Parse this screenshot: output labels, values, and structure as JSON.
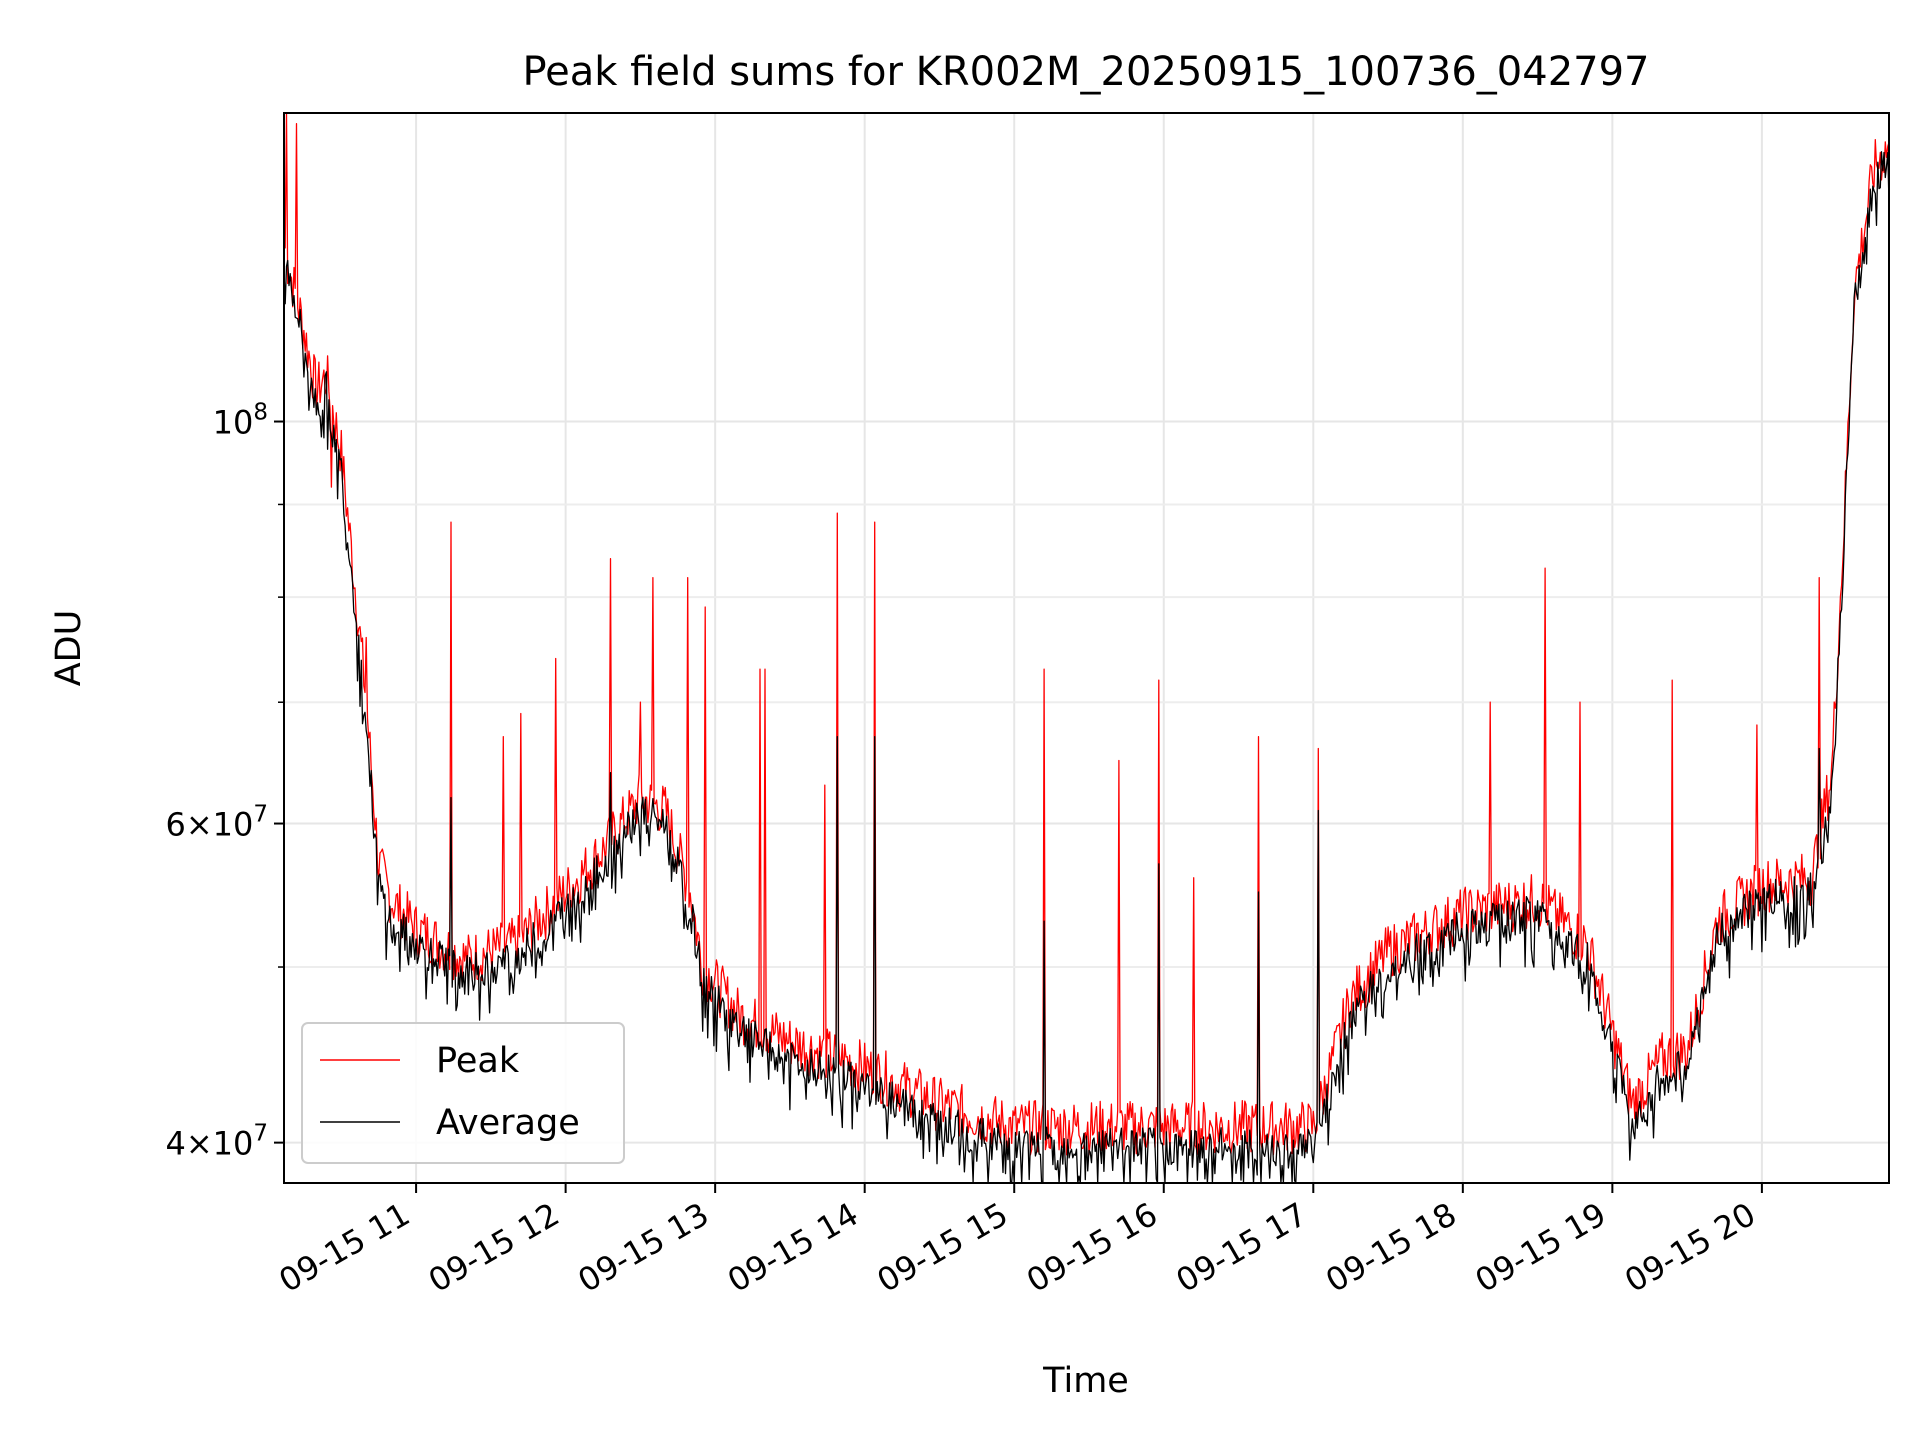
{
  "chart_data": {
    "type": "line",
    "title": "Peak field sums for KR002M_20250915_100736_042797",
    "xlabel": "Time",
    "ylabel": "ADU",
    "y_scale": "log",
    "x_range": [
      "2025-09-15 10:07",
      "2025-09-15 20:51"
    ],
    "ylim": [
      38000000,
      148000000
    ],
    "x_tick_labels": [
      "09-15 11",
      "09-15 12",
      "09-15 13",
      "09-15 14",
      "09-15 15",
      "09-15 16",
      "09-15 17",
      "09-15 18",
      "09-15 19",
      "09-15 20"
    ],
    "x_tick_times": [
      "2025-09-15 11:00",
      "2025-09-15 12:00",
      "2025-09-15 13:00",
      "2025-09-15 14:00",
      "2025-09-15 15:00",
      "2025-09-15 16:00",
      "2025-09-15 17:00",
      "2025-09-15 18:00",
      "2025-09-15 19:00",
      "2025-09-15 20:00"
    ],
    "y_major_ticks": [
      {
        "value": 40000000,
        "mantissa": "4",
        "exponent": "7"
      },
      {
        "value": 60000000,
        "mantissa": "6",
        "exponent": "7"
      },
      {
        "value": 100000000,
        "mantissa": "",
        "exponent": "8"
      }
    ],
    "y_minor_ticks": [
      50000000,
      70000000,
      80000000,
      90000000
    ],
    "grid": true,
    "legend_position": "lower-left",
    "series": [
      {
        "name": "Peak",
        "color": "#ff0000",
        "baseline": [
          [
            "2025-09-15 10:07",
            125000000
          ],
          [
            "2025-09-15 10:10",
            120000000
          ],
          [
            "2025-09-15 10:14",
            114000000
          ],
          [
            "2025-09-15 10:20",
            104000000
          ],
          [
            "2025-09-15 10:24",
            106000000
          ],
          [
            "2025-09-15 10:30",
            96000000
          ],
          [
            "2025-09-15 10:36",
            80000000
          ],
          [
            "2025-09-15 10:40",
            70000000
          ],
          [
            "2025-09-15 10:45",
            57000000
          ],
          [
            "2025-09-15 10:50",
            54500000
          ],
          [
            "2025-09-15 11:00",
            52500000
          ],
          [
            "2025-09-15 11:20",
            50500000
          ],
          [
            "2025-09-15 11:40",
            51500000
          ],
          [
            "2025-09-15 12:00",
            55000000
          ],
          [
            "2025-09-15 12:15",
            58000000
          ],
          [
            "2025-09-15 12:30",
            62000000
          ],
          [
            "2025-09-15 12:40",
            61000000
          ],
          [
            "2025-09-15 12:50",
            55000000
          ],
          [
            "2025-09-15 12:55",
            50000000
          ],
          [
            "2025-09-15 13:10",
            47000000
          ],
          [
            "2025-09-15 13:30",
            45500000
          ],
          [
            "2025-09-15 14:00",
            44000000
          ],
          [
            "2025-09-15 14:30",
            42000000
          ],
          [
            "2025-09-15 15:00",
            40800000
          ],
          [
            "2025-09-15 16:00",
            40800000
          ],
          [
            "2025-09-15 17:00",
            40800000
          ],
          [
            "2025-09-15 17:05",
            43000000
          ],
          [
            "2025-09-15 17:15",
            48000000
          ],
          [
            "2025-09-15 17:30",
            51000000
          ],
          [
            "2025-09-15 18:00",
            53500000
          ],
          [
            "2025-09-15 18:30",
            54500000
          ],
          [
            "2025-09-15 18:50",
            51500000
          ],
          [
            "2025-09-15 19:00",
            46000000
          ],
          [
            "2025-09-15 19:08",
            42000000
          ],
          [
            "2025-09-15 19:20",
            44500000
          ],
          [
            "2025-09-15 19:30",
            45000000
          ],
          [
            "2025-09-15 19:35",
            48000000
          ],
          [
            "2025-09-15 19:42",
            53000000
          ],
          [
            "2025-09-15 20:00",
            55500000
          ],
          [
            "2025-09-15 20:20",
            56000000
          ],
          [
            "2025-09-15 20:28",
            64000000
          ],
          [
            "2025-09-15 20:33",
            88000000
          ],
          [
            "2025-09-15 20:37",
            118000000
          ],
          [
            "2025-09-15 20:45",
            138000000
          ],
          [
            "2025-09-15 20:51",
            142000000
          ]
        ],
        "spikes": [
          [
            "2025-09-15 10:08",
            148000000
          ],
          [
            "2025-09-15 10:12",
            146000000
          ],
          [
            "2025-09-15 10:26",
            92000000
          ],
          [
            "2025-09-15 10:40",
            76000000
          ],
          [
            "2025-09-15 11:14",
            88000000
          ],
          [
            "2025-09-15 11:35",
            67000000
          ],
          [
            "2025-09-15 11:42",
            69000000
          ],
          [
            "2025-09-15 11:56",
            74000000
          ],
          [
            "2025-09-15 12:18",
            84000000
          ],
          [
            "2025-09-15 12:30",
            70000000
          ],
          [
            "2025-09-15 12:35",
            82000000
          ],
          [
            "2025-09-15 12:49",
            82000000
          ],
          [
            "2025-09-15 12:56",
            79000000
          ],
          [
            "2025-09-15 13:18",
            73000000
          ],
          [
            "2025-09-15 13:20",
            73000000
          ],
          [
            "2025-09-15 13:44",
            63000000
          ],
          [
            "2025-09-15 13:49",
            89000000
          ],
          [
            "2025-09-15 14:04",
            88000000
          ],
          [
            "2025-09-15 15:12",
            73000000
          ],
          [
            "2025-09-15 15:42",
            65000000
          ],
          [
            "2025-09-15 15:58",
            72000000
          ],
          [
            "2025-09-15 16:12",
            56000000
          ],
          [
            "2025-09-15 16:38",
            67000000
          ],
          [
            "2025-09-15 17:02",
            66000000
          ],
          [
            "2025-09-15 18:11",
            70000000
          ],
          [
            "2025-09-15 18:33",
            83000000
          ],
          [
            "2025-09-15 18:47",
            70000000
          ],
          [
            "2025-09-15 19:24",
            72000000
          ],
          [
            "2025-09-15 19:58",
            68000000
          ],
          [
            "2025-09-15 20:23",
            82000000
          ]
        ]
      },
      {
        "name": "Average",
        "color": "#000000",
        "baseline": [
          [
            "2025-09-15 10:07",
            124000000
          ],
          [
            "2025-09-15 10:10",
            119000000
          ],
          [
            "2025-09-15 10:14",
            112000000
          ],
          [
            "2025-09-15 10:20",
            102000000
          ],
          [
            "2025-09-15 10:24",
            104000000
          ],
          [
            "2025-09-15 10:30",
            94000000
          ],
          [
            "2025-09-15 10:36",
            78000000
          ],
          [
            "2025-09-15 10:40",
            68000000
          ],
          [
            "2025-09-15 10:45",
            55500000
          ],
          [
            "2025-09-15 10:50",
            53000000
          ],
          [
            "2025-09-15 11:00",
            51500000
          ],
          [
            "2025-09-15 11:20",
            49500000
          ],
          [
            "2025-09-15 11:40",
            50500000
          ],
          [
            "2025-09-15 12:00",
            54000000
          ],
          [
            "2025-09-15 12:15",
            57000000
          ],
          [
            "2025-09-15 12:30",
            61000000
          ],
          [
            "2025-09-15 12:40",
            60000000
          ],
          [
            "2025-09-15 12:50",
            54000000
          ],
          [
            "2025-09-15 12:55",
            49000000
          ],
          [
            "2025-09-15 13:10",
            46000000
          ],
          [
            "2025-09-15 13:30",
            44500000
          ],
          [
            "2025-09-15 14:00",
            43000000
          ],
          [
            "2025-09-15 14:30",
            41000000
          ],
          [
            "2025-09-15 15:00",
            39800000
          ],
          [
            "2025-09-15 16:00",
            39800000
          ],
          [
            "2025-09-15 17:00",
            39800000
          ],
          [
            "2025-09-15 17:05",
            42000000
          ],
          [
            "2025-09-15 17:15",
            47000000
          ],
          [
            "2025-09-15 17:30",
            50000000
          ],
          [
            "2025-09-15 18:00",
            52500000
          ],
          [
            "2025-09-15 18:30",
            53500000
          ],
          [
            "2025-09-15 18:50",
            50500000
          ],
          [
            "2025-09-15 19:00",
            45000000
          ],
          [
            "2025-09-15 19:08",
            41000000
          ],
          [
            "2025-09-15 19:20",
            43500000
          ],
          [
            "2025-09-15 19:30",
            44000000
          ],
          [
            "2025-09-15 19:35",
            47000000
          ],
          [
            "2025-09-15 19:42",
            52000000
          ],
          [
            "2025-09-15 20:00",
            54500000
          ],
          [
            "2025-09-15 20:20",
            55000000
          ],
          [
            "2025-09-15 20:28",
            62000000
          ],
          [
            "2025-09-15 20:33",
            86000000
          ],
          [
            "2025-09-15 20:37",
            116000000
          ],
          [
            "2025-09-15 20:45",
            136000000
          ],
          [
            "2025-09-15 20:51",
            140000000
          ]
        ],
        "spikes": [
          [
            "2025-09-15 11:14",
            62000000
          ],
          [
            "2025-09-15 12:18",
            64000000
          ],
          [
            "2025-09-15 13:49",
            67000000
          ],
          [
            "2025-09-15 14:04",
            67000000
          ],
          [
            "2025-09-15 15:12",
            53000000
          ],
          [
            "2025-09-15 15:58",
            57000000
          ],
          [
            "2025-09-15 16:38",
            55000000
          ],
          [
            "2025-09-15 17:02",
            61000000
          ],
          [
            "2025-09-15 20:23",
            66000000
          ]
        ]
      }
    ]
  }
}
